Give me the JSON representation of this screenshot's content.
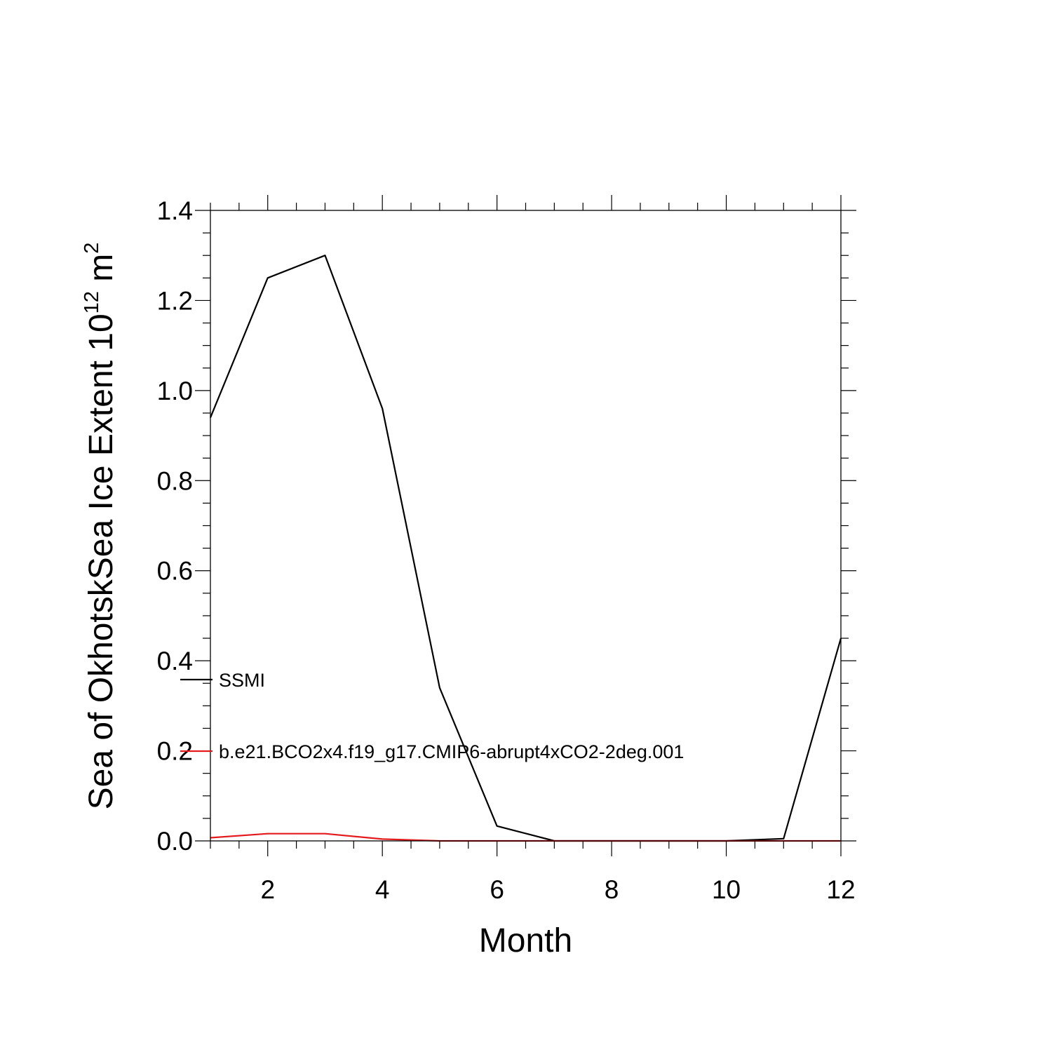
{
  "chart_data": {
    "type": "line",
    "xlabel": "Month",
    "ylabel": {
      "main": "Sea of OkhotskSea Ice Extent 10",
      "exp": "12",
      "unit": " m",
      "unit_exp": "2"
    },
    "xlim": [
      1,
      12
    ],
    "ylim": [
      0,
      1.4
    ],
    "xticks": [
      2,
      4,
      6,
      8,
      10,
      12
    ],
    "yticks": [
      0.0,
      0.2,
      0.4,
      0.6,
      0.8,
      1.0,
      1.2,
      1.4
    ],
    "ytick_labels": [
      "0.0",
      "0.2",
      "0.4",
      "0.6",
      "0.8",
      "1.0",
      "1.2",
      "1.4"
    ],
    "grid": false,
    "legend_position": "left",
    "series": [
      {
        "name": "SSMI",
        "color": "#000000",
        "x": [
          1,
          2,
          3,
          4,
          5,
          6,
          7,
          8,
          9,
          10,
          11,
          12
        ],
        "y": [
          0.94,
          1.25,
          1.3,
          0.96,
          0.34,
          0.033,
          0.0,
          0.0,
          0.0,
          0.0,
          0.005,
          0.45
        ]
      },
      {
        "name": "b.e21.BCO2x4.f19_g17.CMIP6-abrupt4xCO2-2deg.001",
        "color": "#e41a1c",
        "x": [
          1,
          2,
          3,
          4,
          5,
          6,
          7,
          8,
          9,
          10,
          11,
          12
        ],
        "y": [
          0.007,
          0.016,
          0.016,
          0.004,
          0.0,
          0.0,
          0.0,
          0.0,
          0.0,
          0.0,
          0.0,
          0.0
        ]
      }
    ]
  }
}
